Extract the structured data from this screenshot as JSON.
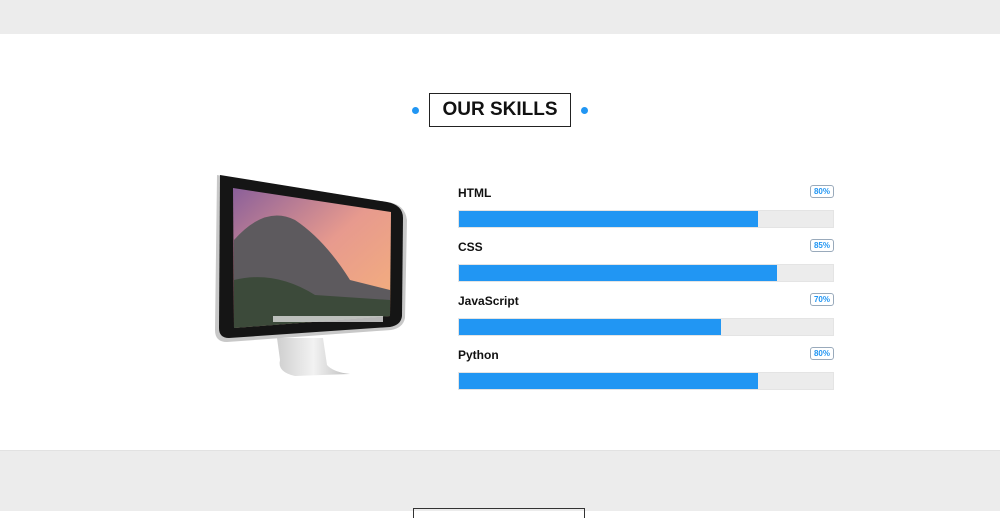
{
  "section_title": "OUR SKILLS",
  "accent": "#2196f3",
  "skills": [
    {
      "name": "HTML",
      "percent_label": "80%",
      "value": 80
    },
    {
      "name": "CSS",
      "percent_label": "85%",
      "value": 85
    },
    {
      "name": "JavaScript",
      "percent_label": "70%",
      "value": 70
    },
    {
      "name": "Python",
      "percent_label": "80%",
      "value": 80
    }
  ]
}
